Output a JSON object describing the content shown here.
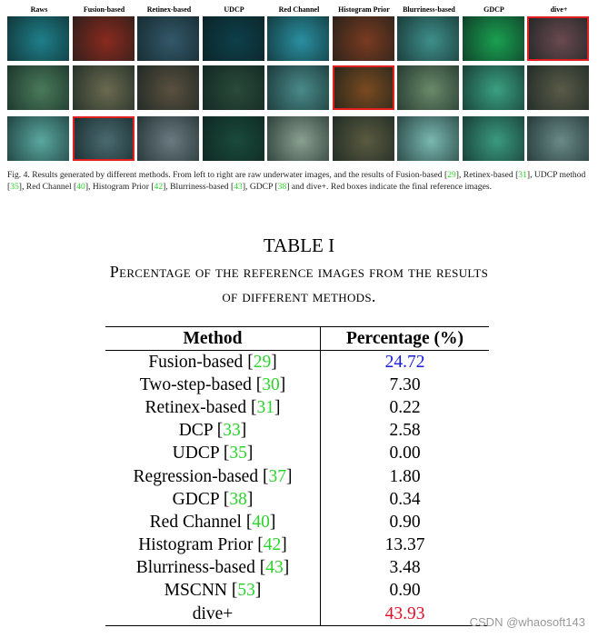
{
  "figure": {
    "column_labels": [
      "Raws",
      "Fusion-based",
      "Retinex-based",
      "UDCP",
      "Red Channel",
      "Histogram Prior",
      "Blurriness-based",
      "GDCP",
      "dive+"
    ],
    "caption": [
      "Fig. 4.  Results generated by different methods. From left to right are raw underwater images, and the results of Fusion-based ",
      "[29]",
      ", Retinex-based ",
      "[31]",
      ", UDCP method ",
      "[35]",
      ", Red Channel ",
      "[40]",
      ", Histogram Prior ",
      "[42]",
      ", Blurriness-based ",
      "[43]",
      ", GDCP ",
      "[38]",
      " and dive+. Red boxes indicate the final reference images."
    ]
  },
  "table": {
    "title": "TABLE I",
    "subtitle": "Percentage of the reference images from the results of different methods.",
    "header": [
      "Method",
      "Percentage (%)"
    ],
    "rows": [
      {
        "method": "Fusion-based",
        "ref": "[29]",
        "value": "24.72",
        "color": "#1a1adc"
      },
      {
        "method": "Two-step-based",
        "ref": "[30]",
        "value": "7.30"
      },
      {
        "method": "Retinex-based",
        "ref": "[31]",
        "value": "0.22"
      },
      {
        "method": "DCP",
        "ref": "[33]",
        "value": "2.58"
      },
      {
        "method": "UDCP",
        "ref": "[35]",
        "value": "0.00"
      },
      {
        "method": "Regression-based",
        "ref": "[37]",
        "value": "1.80"
      },
      {
        "method": "GDCP",
        "ref": "[38]",
        "value": "0.34"
      },
      {
        "method": "Red Channel",
        "ref": "[40]",
        "value": "0.90"
      },
      {
        "method": "Histogram Prior",
        "ref": "[42]",
        "value": "13.37"
      },
      {
        "method": "Blurriness-based",
        "ref": "[43]",
        "value": "3.48"
      },
      {
        "method": "MSCNN",
        "ref": "[53]",
        "value": "0.90"
      },
      {
        "method": "dive+",
        "value": "43.93",
        "color": "#e0102a"
      }
    ]
  },
  "watermark": "CSDN @whaosoft143"
}
